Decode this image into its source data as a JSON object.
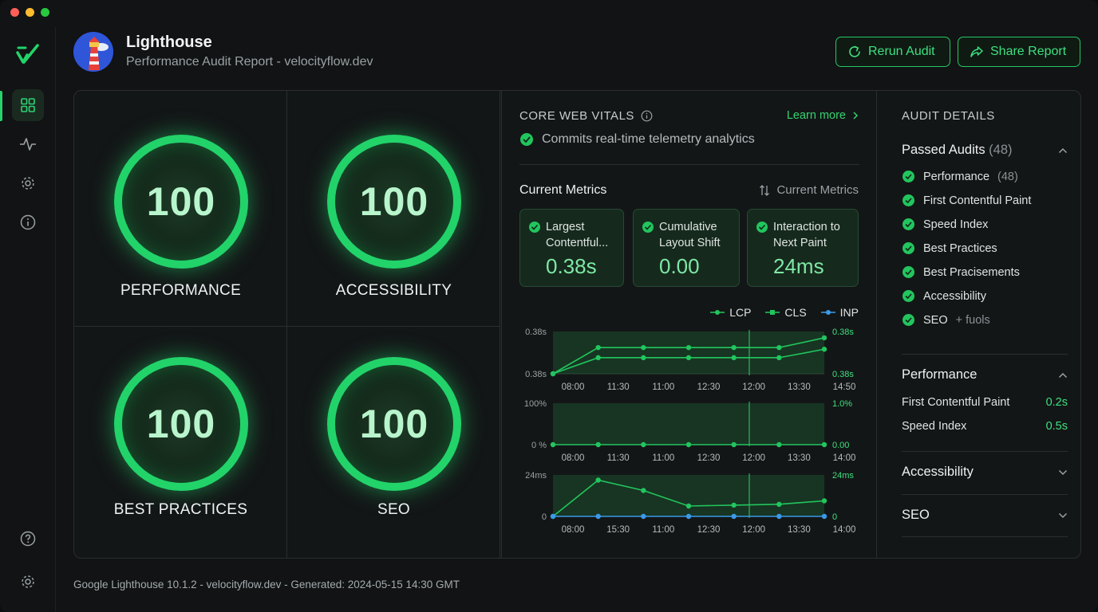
{
  "window": {
    "traffic_colors": [
      "#ff5f57",
      "#febc2e",
      "#28c840"
    ]
  },
  "header": {
    "title": "Lighthouse",
    "subtitle": "Performance Audit Report - velocityflow.dev",
    "rerun_label": "Rerun Audit",
    "share_label": "Share Report"
  },
  "sidebar": {
    "items": [
      "dashboard-icon",
      "activity-icon",
      "settings-icon",
      "info-icon"
    ],
    "bottom": [
      "help-icon",
      "settings-icon"
    ]
  },
  "scores": [
    {
      "value": "100",
      "label": "PERFORMANCE"
    },
    {
      "value": "100",
      "label": "ACCESSIBILITY"
    },
    {
      "value": "100",
      "label": "BEST PRACTICES"
    },
    {
      "value": "100",
      "label": "SEO"
    }
  ],
  "vitals": {
    "title": "CORE WEB VITALS",
    "learn_more": "Learn more",
    "status": "Commits real-time telemetry analytics",
    "current_title": "Current Metrics",
    "sort_label": "Current Metrics",
    "cards": [
      {
        "label": "Largest Contentful...",
        "value": "0.38s"
      },
      {
        "label": "Cumulative Layout Shift",
        "value": "0.00"
      },
      {
        "label": "Interaction to Next Paint",
        "value": "24ms"
      }
    ],
    "legend": [
      {
        "name": "LCP",
        "color": "#22c55e"
      },
      {
        "name": "CLS",
        "color": "#22c55e"
      },
      {
        "name": "INP",
        "color": "#3b9ae8"
      }
    ]
  },
  "chart_data": [
    {
      "type": "line",
      "x": [
        "08:00",
        "11:30",
        "11:00",
        "12:30",
        "12:00",
        "13:30",
        "14:50"
      ],
      "left_axis": [
        "0.38s",
        "0.38s"
      ],
      "right_axis": [
        "0.38s",
        "0.38s"
      ],
      "series": [
        {
          "values": [
            0.0,
            0.62,
            0.62,
            0.62,
            0.62,
            0.62,
            0.85
          ]
        },
        {
          "values": [
            0.0,
            0.38,
            0.38,
            0.38,
            0.38,
            0.38,
            0.58
          ]
        }
      ],
      "ylim": [
        0,
        1
      ]
    },
    {
      "type": "line",
      "x": [
        "08:00",
        "11:30",
        "11:00",
        "12:30",
        "12:00",
        "13:30",
        "14:00"
      ],
      "left_axis": [
        "100%",
        "0 %"
      ],
      "right_axis": [
        "1.0%",
        "0.00"
      ],
      "series": [
        {
          "values": [
            0,
            0,
            0,
            0,
            0,
            0,
            0
          ]
        }
      ],
      "ylim": [
        0,
        1
      ]
    },
    {
      "type": "line",
      "x": [
        "08:00",
        "15:30",
        "11:00",
        "12:30",
        "12:00",
        "13:30",
        "14:00"
      ],
      "left_axis": [
        "24ms",
        "0"
      ],
      "right_axis": [
        "24ms",
        "0"
      ],
      "series": [
        {
          "values": [
            0,
            21,
            15,
            6,
            6.5,
            7,
            9
          ]
        },
        {
          "values": [
            0,
            0,
            0,
            0,
            0,
            0,
            0
          ]
        }
      ],
      "ylim": [
        0,
        24
      ]
    }
  ],
  "audit": {
    "title": "AUDIT DETAILS",
    "passed_label": "Passed Audits",
    "passed_count": "(48)",
    "passed_items": [
      {
        "label": "Performance",
        "extra": "(48)"
      },
      {
        "label": "First Contentful Paint",
        "extra": ""
      },
      {
        "label": "Speed Index",
        "extra": ""
      },
      {
        "label": "Best Practices",
        "extra": ""
      },
      {
        "label": "Best Pracisements",
        "extra": ""
      },
      {
        "label": "Accessibility",
        "extra": ""
      },
      {
        "label": "SEO",
        "extra": "+ fuols"
      }
    ],
    "performance_label": "Performance",
    "perf_rows": [
      {
        "label": "First Contentful Paint",
        "value": "0.2s"
      },
      {
        "label": "Speed Index",
        "value": "0.5s"
      }
    ],
    "accessibility_label": "Accessibility",
    "seo_label": "SEO"
  },
  "footer": {
    "text": "Google Lighthouse 10.1.2 - velocityflow.dev - Generated: 2024-05-15 14:30 GMT"
  },
  "colors": {
    "accent": "#22d36a",
    "inp_blue": "#3b9ae8"
  }
}
